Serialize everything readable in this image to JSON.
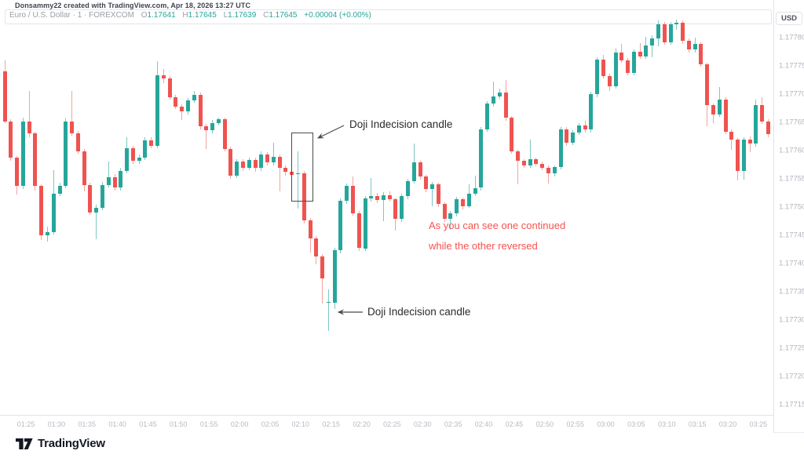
{
  "attribution": "Donsammy22 created with TradingView.com, Apr 18, 2026 13:27 UTC",
  "legend": {
    "symbol_text": "Euro / U.S. Dollar · 1 · FOREXCOM",
    "o_label": "O",
    "o_value": "1.17641",
    "h_label": "H",
    "h_value": "1.17645",
    "l_label": "L",
    "l_value": "1.17639",
    "c_label": "C",
    "c_value": "1.17645",
    "change_text": "+0.00004 (+0.00%)"
  },
  "axis": {
    "currency_button": "USD",
    "price_labels": [
      "1.17780",
      "1.17775",
      "1.17770",
      "1.17765",
      "1.17760",
      "1.17755",
      "1.17750",
      "1.17745",
      "1.17740",
      "1.17735",
      "1.17730",
      "1.17725",
      "1.17720",
      "1.17715"
    ],
    "time_labels": [
      "01:25",
      "01:30",
      "01:35",
      "01:40",
      "01:45",
      "01:50",
      "01:55",
      "02:00",
      "02:05",
      "02:10",
      "02:15",
      "02:20",
      "02:25",
      "02:30",
      "02:35",
      "02:40",
      "02:45",
      "02:50",
      "02:55",
      "03:00",
      "03:05",
      "03:10",
      "03:15",
      "03:20",
      "03:25"
    ]
  },
  "annotations": {
    "doji_label_top": "Doji Indecision candle",
    "doji_label_bottom": "Doji Indecision candle",
    "red_note_line1": "As you can see one continued",
    "red_note_line2": "while the other reversed"
  },
  "footer": {
    "logo_text": "TradingView"
  },
  "colors": {
    "up_body": "#26a69a",
    "up_wick": "#7bc9c1",
    "down_body": "#ef5350",
    "down_wick": "#f2a4a2",
    "note_red": "#f5534f",
    "accent_teal": "#26a69a"
  },
  "chart_data": {
    "type": "candlestick",
    "title": "Euro / U.S. Dollar 1-minute (FOREXCOM)",
    "ylabel": "USD",
    "ylim": [
      1.17715,
      1.17785
    ],
    "grid": false,
    "legend_position": "top-left",
    "candles_ohlc": [
      [
        1.17774,
        1.17776,
        1.177648,
        1.177652
      ],
      [
        1.177652,
        1.177656,
        1.177582,
        1.177587
      ],
      [
        1.177587,
        1.177591,
        1.177523,
        1.177537
      ],
      [
        1.177537,
        1.177658,
        1.177532,
        1.177652
      ],
      [
        1.177652,
        1.177706,
        1.177624,
        1.17763
      ],
      [
        1.17763,
        1.177634,
        1.177529,
        1.177537
      ],
      [
        1.177537,
        1.177541,
        1.177442,
        1.17745
      ],
      [
        1.17745,
        1.177466,
        1.177439,
        1.177456
      ],
      [
        1.177456,
        1.177565,
        1.177451,
        1.177524
      ],
      [
        1.177524,
        1.177543,
        1.177519,
        1.177538
      ],
      [
        1.177538,
        1.177657,
        1.177533,
        1.177652
      ],
      [
        1.177652,
        1.177706,
        1.177626,
        1.177631
      ],
      [
        1.177631,
        1.177635,
        1.177594,
        1.177599
      ],
      [
        1.177599,
        1.177603,
        1.177527,
        1.177539
      ],
      [
        1.177539,
        1.177543,
        1.177486,
        1.17749
      ],
      [
        1.17749,
        1.177504,
        1.177443,
        1.177499
      ],
      [
        1.177499,
        1.177544,
        1.177494,
        1.177539
      ],
      [
        1.177539,
        1.177581,
        1.177534,
        1.177553
      ],
      [
        1.177553,
        1.177558,
        1.177529,
        1.177534
      ],
      [
        1.177534,
        1.177569,
        1.177529,
        1.177564
      ],
      [
        1.177564,
        1.177624,
        1.177559,
        1.177604
      ],
      [
        1.177604,
        1.177609,
        1.177577,
        1.177582
      ],
      [
        1.177582,
        1.177593,
        1.177576,
        1.177588
      ],
      [
        1.177588,
        1.177623,
        1.177583,
        1.177618
      ],
      [
        1.177618,
        1.177624,
        1.177604,
        1.177609
      ],
      [
        1.177609,
        1.177759,
        1.177604,
        1.177734
      ],
      [
        1.177734,
        1.177745,
        1.177719,
        1.177728
      ],
      [
        1.177728,
        1.177732,
        1.17769,
        1.177695
      ],
      [
        1.177695,
        1.177699,
        1.177673,
        1.177678
      ],
      [
        1.177678,
        1.177682,
        1.177654,
        1.177669
      ],
      [
        1.177669,
        1.177693,
        1.177664,
        1.177689
      ],
      [
        1.177689,
        1.177706,
        1.177684,
        1.177699
      ],
      [
        1.177699,
        1.177703,
        1.177638,
        1.177643
      ],
      [
        1.177643,
        1.177647,
        1.177603,
        1.177636
      ],
      [
        1.177636,
        1.177654,
        1.177631,
        1.177649
      ],
      [
        1.177649,
        1.177659,
        1.177644,
        1.177655
      ],
      [
        1.177655,
        1.177659,
        1.177598,
        1.177603
      ],
      [
        1.177603,
        1.177607,
        1.17755,
        1.177556
      ],
      [
        1.177556,
        1.177585,
        1.177551,
        1.17758
      ],
      [
        1.17758,
        1.177585,
        1.177564,
        1.17757
      ],
      [
        1.17757,
        1.177588,
        1.177565,
        1.177583
      ],
      [
        1.177583,
        1.177587,
        1.177563,
        1.177569
      ],
      [
        1.177569,
        1.177598,
        1.177564,
        1.177593
      ],
      [
        1.177593,
        1.177597,
        1.177573,
        1.177579
      ],
      [
        1.177579,
        1.177614,
        1.177574,
        1.177589
      ],
      [
        1.177589,
        1.177593,
        1.177528,
        1.17757
      ],
      [
        1.17757,
        1.177574,
        1.177556,
        1.177562
      ],
      [
        1.177562,
        1.177567,
        1.177551,
        1.177557
      ],
      [
        1.177558,
        1.177599,
        1.177497,
        1.17756
      ],
      [
        1.17756,
        1.177564,
        1.177471,
        1.177476
      ],
      [
        1.177476,
        1.17748,
        1.17742,
        1.177444
      ],
      [
        1.177444,
        1.177448,
        1.177398,
        1.177413
      ],
      [
        1.177413,
        1.177417,
        1.177329,
        1.177374
      ],
      [
        1.17733,
        1.177354,
        1.17728,
        1.177332
      ],
      [
        1.17733,
        1.177428,
        1.177319,
        1.177423
      ],
      [
        1.177423,
        1.177516,
        1.177418,
        1.177511
      ],
      [
        1.177511,
        1.177542,
        1.177506,
        1.177537
      ],
      [
        1.177537,
        1.177554,
        1.177484,
        1.177489
      ],
      [
        1.177489,
        1.177493,
        1.177422,
        1.177427
      ],
      [
        1.177427,
        1.17752,
        1.177422,
        1.177515
      ],
      [
        1.177515,
        1.177551,
        1.17751,
        1.17752
      ],
      [
        1.17752,
        1.177525,
        1.177507,
        1.177513
      ],
      [
        1.177513,
        1.177526,
        1.177475,
        1.177521
      ],
      [
        1.177521,
        1.177528,
        1.177509,
        1.177514
      ],
      [
        1.177514,
        1.177517,
        1.177458,
        1.177479
      ],
      [
        1.177479,
        1.177524,
        1.177474,
        1.177519
      ],
      [
        1.177519,
        1.17755,
        1.177514,
        1.177546
      ],
      [
        1.177546,
        1.177613,
        1.177542,
        1.177579
      ],
      [
        1.177579,
        1.177582,
        1.177549,
        1.177554
      ],
      [
        1.177554,
        1.177557,
        1.177527,
        1.177532
      ],
      [
        1.177532,
        1.177545,
        1.177502,
        1.17754
      ],
      [
        1.17754,
        1.177543,
        1.1775,
        1.177505
      ],
      [
        1.177505,
        1.177508,
        1.177474,
        1.177479
      ],
      [
        1.177479,
        1.177493,
        1.17746,
        1.177489
      ],
      [
        1.177489,
        1.177518,
        1.177484,
        1.177514
      ],
      [
        1.177514,
        1.177517,
        1.177496,
        1.177501
      ],
      [
        1.177501,
        1.17754,
        1.177499,
        1.177523
      ],
      [
        1.177523,
        1.177556,
        1.177519,
        1.177534
      ],
      [
        1.177534,
        1.177642,
        1.177529,
        1.177638
      ],
      [
        1.177638,
        1.177687,
        1.177633,
        1.177683
      ],
      [
        1.177683,
        1.177722,
        1.177678,
        1.177696
      ],
      [
        1.177696,
        1.17771,
        1.177691,
        1.177703
      ],
      [
        1.177703,
        1.177725,
        1.177653,
        1.177658
      ],
      [
        1.177658,
        1.177661,
        1.177594,
        1.177599
      ],
      [
        1.177599,
        1.177602,
        1.17754,
        1.177582
      ],
      [
        1.177582,
        1.177585,
        1.177569,
        1.177574
      ],
      [
        1.177574,
        1.17762,
        1.17757,
        1.177585
      ],
      [
        1.177585,
        1.177588,
        1.177572,
        1.177577
      ],
      [
        1.177577,
        1.17758,
        1.177565,
        1.17757
      ],
      [
        1.17757,
        1.177573,
        1.177542,
        1.177559
      ],
      [
        1.177559,
        1.177574,
        1.177554,
        1.177571
      ],
      [
        1.177571,
        1.177642,
        1.177566,
        1.177638
      ],
      [
        1.177638,
        1.177642,
        1.177609,
        1.177614
      ],
      [
        1.177614,
        1.177636,
        1.177609,
        1.177632
      ],
      [
        1.177632,
        1.177649,
        1.177627,
        1.177645
      ],
      [
        1.177645,
        1.177653,
        1.177632,
        1.177637
      ],
      [
        1.177637,
        1.177704,
        1.177632,
        1.1777
      ],
      [
        1.1777,
        1.177765,
        1.177695,
        1.177761
      ],
      [
        1.177761,
        1.177769,
        1.177727,
        1.177732
      ],
      [
        1.177732,
        1.177736,
        1.177705,
        1.177714
      ],
      [
        1.177714,
        1.177781,
        1.177709,
        1.177774
      ],
      [
        1.177774,
        1.177789,
        1.177755,
        1.17776
      ],
      [
        1.17776,
        1.177764,
        1.177733,
        1.177738
      ],
      [
        1.177738,
        1.177779,
        1.177733,
        1.177775
      ],
      [
        1.177775,
        1.177791,
        1.177762,
        1.177767
      ],
      [
        1.177767,
        1.177801,
        1.177762,
        1.177786
      ],
      [
        1.177786,
        1.177804,
        1.177765,
        1.177798
      ],
      [
        1.177798,
        1.177831,
        1.177784,
        1.177824
      ],
      [
        1.177824,
        1.177828,
        1.177787,
        1.177792
      ],
      [
        1.177792,
        1.177828,
        1.177787,
        1.177823
      ],
      [
        1.177823,
        1.177832,
        1.177814,
        1.177827
      ],
      [
        1.177827,
        1.177831,
        1.177789,
        1.177794
      ],
      [
        1.177794,
        1.177798,
        1.177774,
        1.177779
      ],
      [
        1.177779,
        1.1778,
        1.177774,
        1.177789
      ],
      [
        1.177789,
        1.177792,
        1.177748,
        1.177753
      ],
      [
        1.177753,
        1.177756,
        1.177643,
        1.17768
      ],
      [
        1.17768,
        1.177683,
        1.177649,
        1.177664
      ],
      [
        1.177664,
        1.177713,
        1.177659,
        1.177691
      ],
      [
        1.177691,
        1.177694,
        1.177629,
        1.177634
      ],
      [
        1.177634,
        1.177637,
        1.177601,
        1.177619
      ],
      [
        1.177619,
        1.177622,
        1.177547,
        1.177564
      ],
      [
        1.177564,
        1.177624,
        1.177549,
        1.17762
      ],
      [
        1.17762,
        1.177625,
        1.177597,
        1.177612
      ],
      [
        1.177612,
        1.17769,
        1.177607,
        1.177681
      ],
      [
        1.177681,
        1.177694,
        1.177647,
        1.177652
      ],
      [
        1.177652,
        1.177655,
        1.177624,
        1.177629
      ]
    ]
  }
}
